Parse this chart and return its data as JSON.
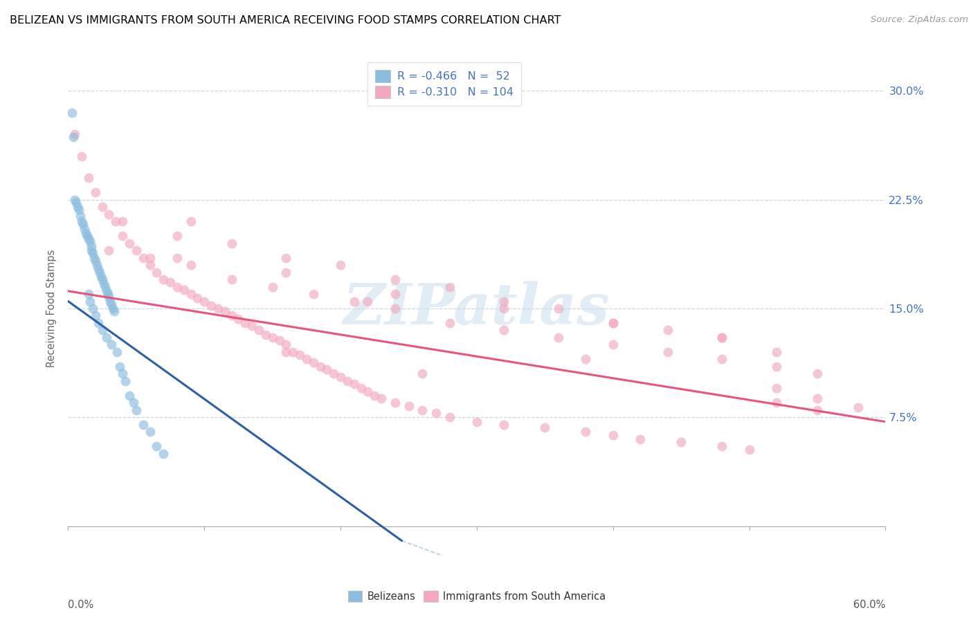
{
  "title": "BELIZEAN VS IMMIGRANTS FROM SOUTH AMERICA RECEIVING FOOD STAMPS CORRELATION CHART",
  "source": "Source: ZipAtlas.com",
  "color_blue_dot": "#89BCDF",
  "color_pink_dot": "#F4A8BF",
  "color_blue_line": "#2B5FA6",
  "color_pink_line": "#E8547A",
  "color_dashed": "#AACCEE",
  "watermark": "ZIPatlas",
  "legend_label_blue": "Belizeans",
  "legend_label_pink": "Immigrants from South America",
  "xlim": [
    0.0,
    0.6
  ],
  "ylim": [
    -0.02,
    0.32
  ],
  "yticks": [
    0.0,
    0.075,
    0.15,
    0.225,
    0.3
  ],
  "ylabel_right_labels": [
    "",
    "7.5%",
    "15.0%",
    "22.5%",
    "30.0%"
  ],
  "blue_dots_x": [
    0.003,
    0.004,
    0.005,
    0.006,
    0.007,
    0.008,
    0.009,
    0.01,
    0.011,
    0.012,
    0.013,
    0.014,
    0.015,
    0.016,
    0.017,
    0.017,
    0.018,
    0.019,
    0.02,
    0.021,
    0.022,
    0.023,
    0.024,
    0.025,
    0.026,
    0.027,
    0.028,
    0.029,
    0.03,
    0.031,
    0.032,
    0.033,
    0.034,
    0.015,
    0.016,
    0.018,
    0.02,
    0.022,
    0.025,
    0.028,
    0.032,
    0.036,
    0.038,
    0.04,
    0.042,
    0.045,
    0.048,
    0.05,
    0.055,
    0.06,
    0.065,
    0.07
  ],
  "blue_dots_y": [
    0.285,
    0.268,
    0.225,
    0.223,
    0.22,
    0.218,
    0.214,
    0.21,
    0.208,
    0.205,
    0.202,
    0.2,
    0.198,
    0.196,
    0.193,
    0.19,
    0.188,
    0.185,
    0.183,
    0.18,
    0.177,
    0.175,
    0.172,
    0.17,
    0.167,
    0.165,
    0.162,
    0.16,
    0.158,
    0.155,
    0.153,
    0.15,
    0.148,
    0.16,
    0.155,
    0.15,
    0.145,
    0.14,
    0.135,
    0.13,
    0.125,
    0.12,
    0.11,
    0.105,
    0.1,
    0.09,
    0.085,
    0.08,
    0.07,
    0.065,
    0.055,
    0.05
  ],
  "pink_dots_x": [
    0.005,
    0.01,
    0.015,
    0.02,
    0.025,
    0.03,
    0.035,
    0.04,
    0.045,
    0.05,
    0.055,
    0.06,
    0.065,
    0.07,
    0.075,
    0.08,
    0.085,
    0.09,
    0.09,
    0.095,
    0.1,
    0.105,
    0.11,
    0.115,
    0.12,
    0.125,
    0.13,
    0.135,
    0.14,
    0.145,
    0.15,
    0.155,
    0.16,
    0.165,
    0.17,
    0.175,
    0.18,
    0.185,
    0.19,
    0.195,
    0.2,
    0.205,
    0.21,
    0.215,
    0.22,
    0.225,
    0.23,
    0.24,
    0.25,
    0.26,
    0.27,
    0.28,
    0.3,
    0.32,
    0.35,
    0.38,
    0.4,
    0.42,
    0.45,
    0.48,
    0.5,
    0.52,
    0.55,
    0.03,
    0.06,
    0.09,
    0.12,
    0.15,
    0.18,
    0.21,
    0.24,
    0.28,
    0.32,
    0.36,
    0.4,
    0.44,
    0.48,
    0.52,
    0.04,
    0.08,
    0.12,
    0.16,
    0.2,
    0.24,
    0.28,
    0.32,
    0.36,
    0.4,
    0.44,
    0.48,
    0.52,
    0.08,
    0.16,
    0.24,
    0.32,
    0.4,
    0.48,
    0.55,
    0.22,
    0.38,
    0.52,
    0.55,
    0.58,
    0.16,
    0.26
  ],
  "pink_dots_y": [
    0.27,
    0.255,
    0.24,
    0.23,
    0.22,
    0.215,
    0.21,
    0.2,
    0.195,
    0.19,
    0.185,
    0.18,
    0.175,
    0.17,
    0.168,
    0.165,
    0.163,
    0.16,
    0.21,
    0.157,
    0.155,
    0.152,
    0.15,
    0.148,
    0.145,
    0.143,
    0.14,
    0.138,
    0.135,
    0.132,
    0.13,
    0.128,
    0.125,
    0.12,
    0.118,
    0.115,
    0.113,
    0.11,
    0.108,
    0.105,
    0.103,
    0.1,
    0.098,
    0.095,
    0.093,
    0.09,
    0.088,
    0.085,
    0.083,
    0.08,
    0.078,
    0.075,
    0.072,
    0.07,
    0.068,
    0.065,
    0.063,
    0.06,
    0.058,
    0.055,
    0.053,
    0.085,
    0.08,
    0.19,
    0.185,
    0.18,
    0.17,
    0.165,
    0.16,
    0.155,
    0.15,
    0.14,
    0.135,
    0.13,
    0.125,
    0.12,
    0.115,
    0.11,
    0.21,
    0.2,
    0.195,
    0.185,
    0.18,
    0.17,
    0.165,
    0.155,
    0.15,
    0.14,
    0.135,
    0.13,
    0.12,
    0.185,
    0.175,
    0.16,
    0.15,
    0.14,
    0.13,
    0.105,
    0.155,
    0.115,
    0.095,
    0.088,
    0.082,
    0.12,
    0.105
  ],
  "blue_line_x": [
    0.0,
    0.245
  ],
  "blue_line_y": [
    0.155,
    -0.01
  ],
  "pink_line_x": [
    0.0,
    0.6
  ],
  "pink_line_y": [
    0.162,
    0.072
  ],
  "dashed_line_x": [
    0.245,
    0.45
  ],
  "dashed_line_y": [
    -0.01,
    -0.08
  ]
}
